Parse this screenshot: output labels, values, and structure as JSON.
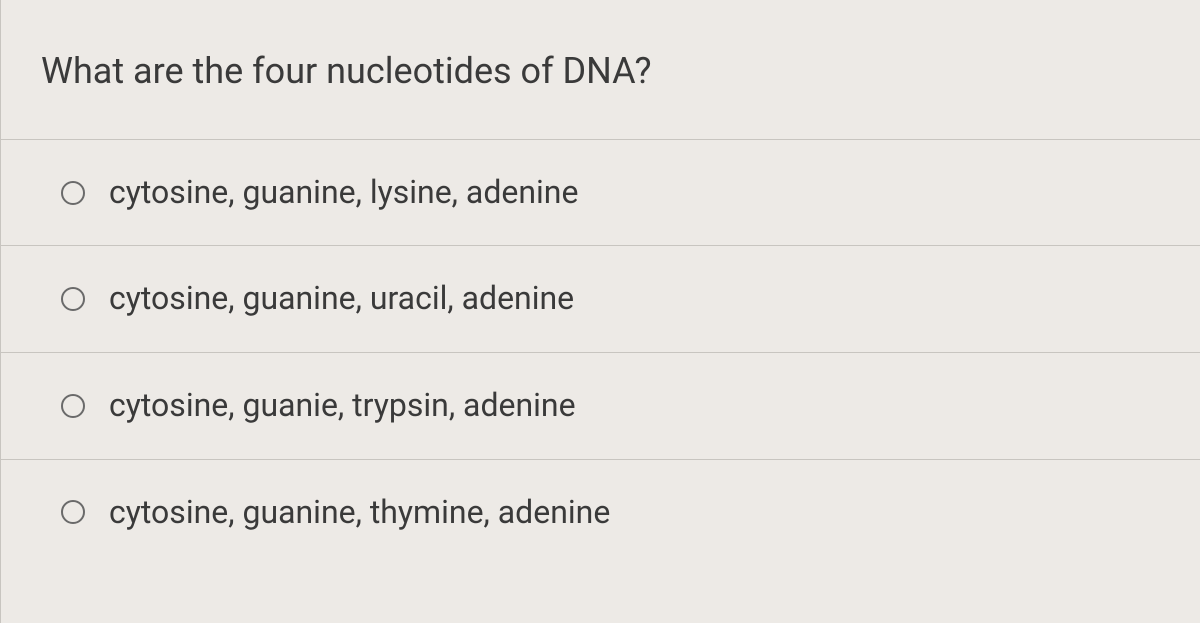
{
  "quiz": {
    "question": "What are the four nucleotides of DNA?",
    "options": [
      {
        "label": "cytosine, guanine, lysine, adenine"
      },
      {
        "label": "cytosine, guanine, uracil, adenine"
      },
      {
        "label": "cytosine, guanie, trypsin, adenine"
      },
      {
        "label": "cytosine, guanine, thymine, adenine"
      }
    ]
  },
  "style": {
    "background_color": "#edeae6",
    "text_color": "#3a3a3a",
    "border_color": "#c8c5c0",
    "radio_border_color": "#6a6a6a",
    "question_fontsize": 36,
    "option_fontsize": 32
  }
}
